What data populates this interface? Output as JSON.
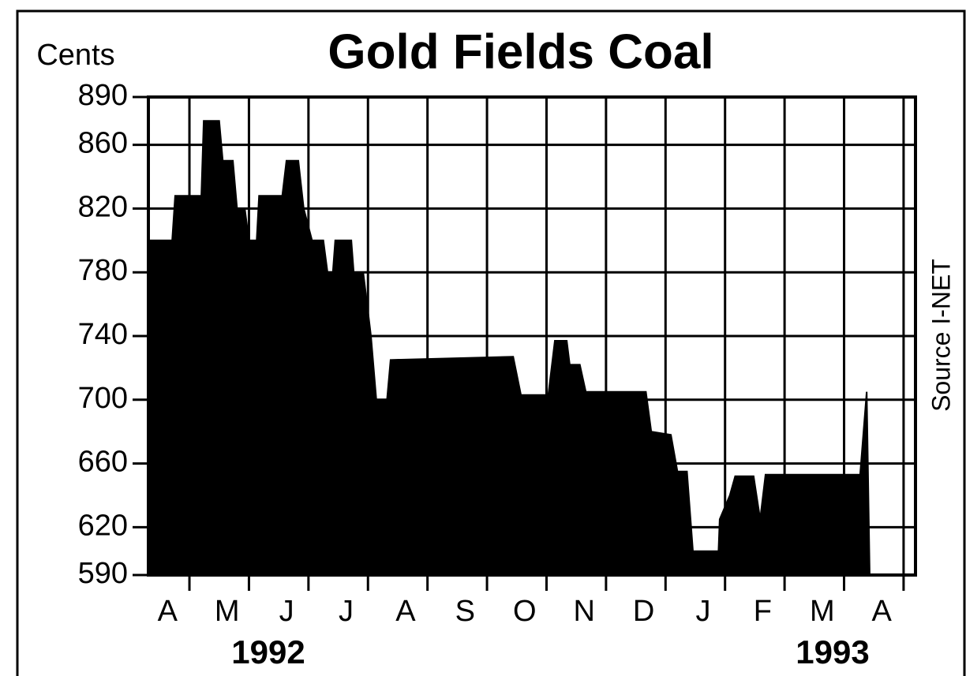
{
  "chart_data": {
    "type": "area",
    "title": "Gold Fields Coal",
    "y_label": "Cents",
    "source": "Source I-NET",
    "month_labels": [
      "A",
      "M",
      "J",
      "J",
      "A",
      "S",
      "O",
      "N",
      "D",
      "J",
      "F",
      "M",
      "A"
    ],
    "year_labels": [
      "1992",
      "1993"
    ],
    "x": [
      0.31,
      0.71,
      0.76,
      1.2,
      1.24,
      1.5,
      1.56,
      1.73,
      1.8,
      1.93,
      2.0,
      2.13,
      2.17,
      2.56,
      2.63,
      2.83,
      2.92,
      3.06,
      3.25,
      3.32,
      3.41,
      3.45,
      3.72,
      3.76,
      3.92,
      4.05,
      4.14,
      4.32,
      4.38,
      6.44,
      6.57,
      7.03,
      7.14,
      7.34,
      7.39,
      7.56,
      7.66,
      8.67,
      8.76,
      9.09,
      9.2,
      9.36,
      9.46,
      9.89,
      9.91,
      10.08,
      10.17,
      10.48,
      10.59,
      10.68,
      12.27,
      12.38,
      12.43
    ],
    "values": [
      800,
      800,
      828,
      828,
      875,
      875,
      850,
      850,
      820,
      820,
      800,
      800,
      828,
      828,
      850,
      850,
      820,
      800,
      800,
      780,
      780,
      800,
      800,
      780,
      780,
      740,
      700,
      700,
      725,
      727,
      703,
      703,
      737,
      737,
      722,
      722,
      705,
      705,
      680,
      678,
      655,
      655,
      605,
      605,
      625,
      640,
      652,
      652,
      625,
      653,
      653,
      705,
      590
    ],
    "color": "#000000",
    "xlim": [
      0.31,
      13.2
    ],
    "ylim": [
      590,
      890
    ],
    "yticks": [
      590,
      620,
      660,
      700,
      740,
      780,
      820,
      860,
      890
    ],
    "grid": true
  }
}
